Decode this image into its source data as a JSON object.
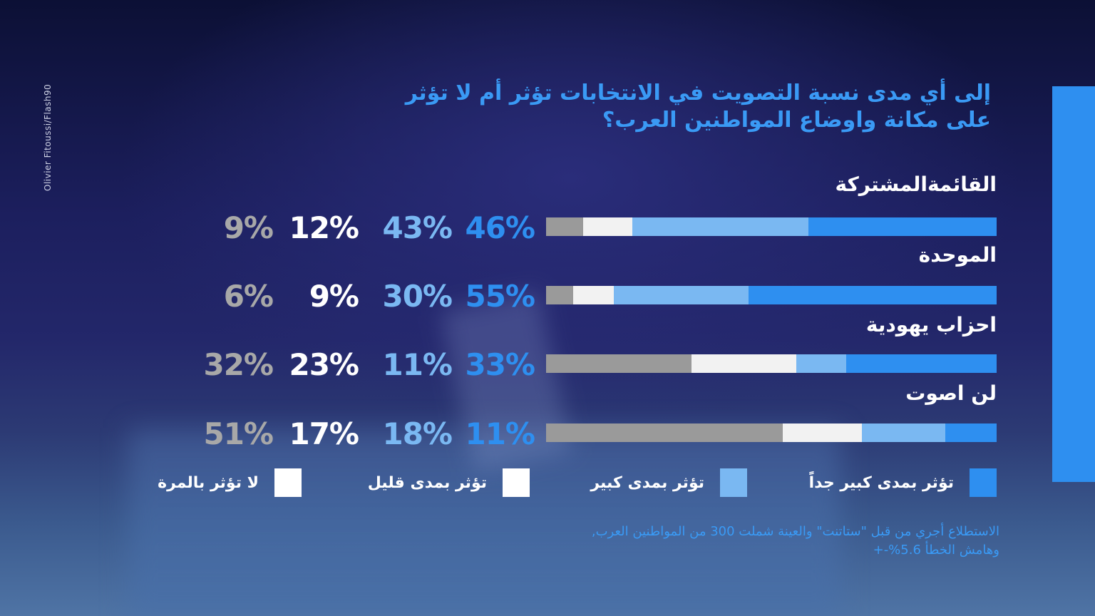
{
  "credit": "Olivier Fitoussi/Flash90",
  "title_lines": [
    "إلى أي مدى نسبة التصويت في الانتخابات تؤثر أم لا تؤثر",
    "على مكانة واوضاع المواطنين العرب؟"
  ],
  "colors": {
    "very_high": "#2e8ff0",
    "high": "#7ab8f2",
    "low": "#f2f2f2",
    "none": "#9a9a9a",
    "accent_bar": "#2e8ff0"
  },
  "chart_data": {
    "type": "bar",
    "orientation": "horizontal-stacked-100",
    "title": "إلى أي مدى نسبة التصويت في الانتخابات تؤثر أم لا تؤثر على مكانة واوضاع المواطنين العرب؟",
    "categories": [
      "القائمةالمشتركة",
      "الموحدة",
      "احزاب يهودية",
      "لن اصوت"
    ],
    "series": [
      {
        "name": "تؤثر بمدى كبير جداً",
        "values": [
          46,
          55,
          33,
          11
        ]
      },
      {
        "name": "تؤثر بمدى كبير",
        "values": [
          43,
          30,
          11,
          18
        ]
      },
      {
        "name": "تؤثر بمدى قليل",
        "values": [
          12,
          9,
          23,
          17
        ]
      },
      {
        "name": "لا تؤثر بالمرة",
        "values": [
          9,
          6,
          32,
          51
        ]
      }
    ],
    "value_labels": [
      [
        "46%",
        "43%",
        "12%",
        "9%"
      ],
      [
        "55%",
        "30%",
        "9%",
        "6%"
      ],
      [
        "33%",
        "11%",
        "23%",
        "32%"
      ],
      [
        "11%",
        "18%",
        "17%",
        "51%"
      ]
    ],
    "legend_position": "bottom"
  },
  "footnote_lines": [
    "الاستطلاع أجري من قبل \"ستاتنت\" والعينة شملت 300 من المواطنين العرب,",
    "وهامش الخطأ 5.6%-+"
  ]
}
